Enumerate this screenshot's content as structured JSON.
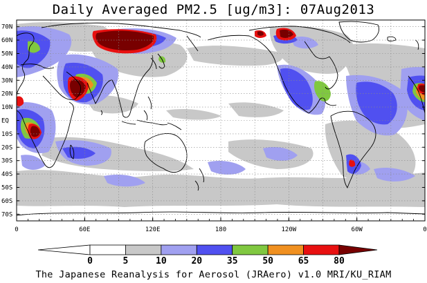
{
  "title": "Daily Averaged PM2.5 [ug/m3]: 07Aug2013",
  "footer": "The Japanese Reanalysis for Aerosol (JRAero) v1.0 MRI/KU_RIAM",
  "map": {
    "projection": "equirectangular",
    "lon_range": [
      0,
      360
    ],
    "lat_range": [
      -75,
      75
    ],
    "grid": true,
    "lat_labels": [
      "70N",
      "60N",
      "50N",
      "40N",
      "30N",
      "20N",
      "10N",
      "EQ",
      "10S",
      "20S",
      "30S",
      "40S",
      "50S",
      "60S",
      "70S"
    ],
    "lat_values": [
      70,
      60,
      50,
      40,
      30,
      20,
      10,
      0,
      -10,
      -20,
      -30,
      -40,
      -50,
      -60,
      -70
    ],
    "lon_labels": [
      "0",
      "60E",
      "120E",
      "180",
      "120W",
      "60W",
      "0"
    ],
    "lon_values": [
      0,
      60,
      120,
      180,
      240,
      300,
      360
    ]
  },
  "colorbar": {
    "levels": [
      "0",
      "5",
      "10",
      "20",
      "35",
      "50",
      "65",
      "80"
    ],
    "colors": [
      "#ffffff",
      "#c8c8c8",
      "#a0a0f0",
      "#5050f0",
      "#80c840",
      "#f09020",
      "#e81010",
      "#780000"
    ]
  }
}
